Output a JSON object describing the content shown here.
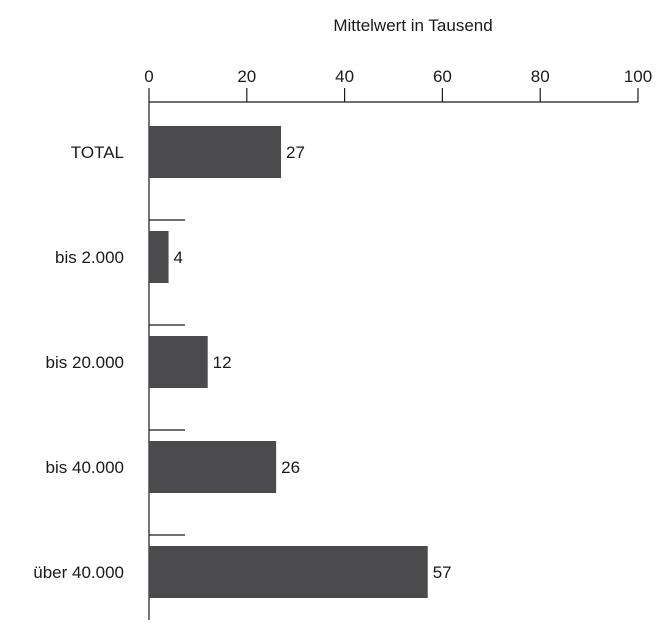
{
  "chart_data": {
    "type": "bar",
    "orientation": "horizontal",
    "title": "Mittelwert in Tausend",
    "xlabel": "",
    "ylabel": "",
    "xlim": [
      0,
      100
    ],
    "x_ticks": [
      0,
      20,
      40,
      60,
      80,
      100
    ],
    "x_axis_position": "top",
    "grid": false,
    "categories": [
      "TOTAL",
      "bis 2.000",
      "bis 20.000",
      "bis 40.000",
      "über 40.000"
    ],
    "values": [
      27,
      4,
      12,
      26,
      57
    ],
    "data_labels": [
      "27",
      "4",
      "12",
      "26",
      "57"
    ],
    "colors": {
      "bar": "#4b4b4d",
      "axis": "#1a1a1a",
      "text": "#1a1a1a"
    }
  }
}
